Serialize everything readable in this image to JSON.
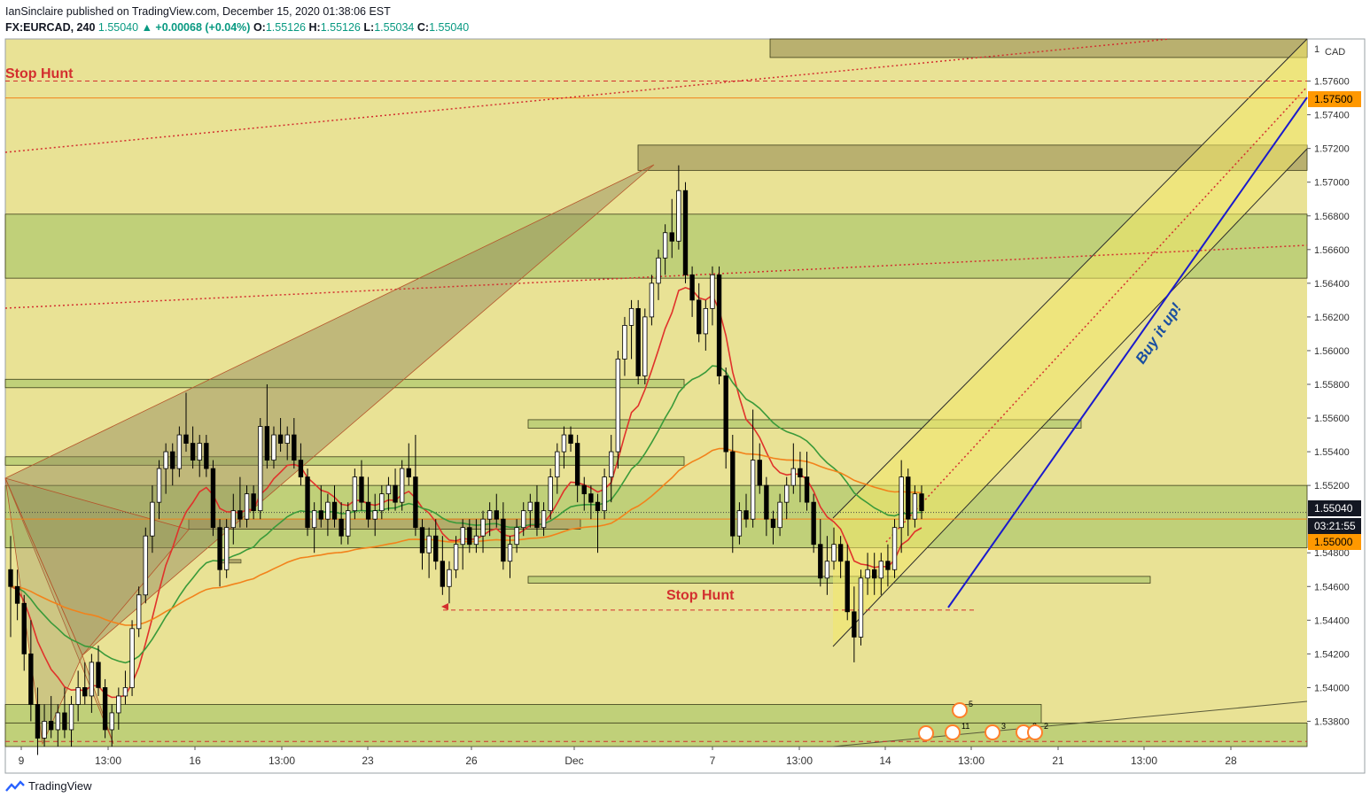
{
  "header": {
    "publisher_line": "IanSinclaire published on TradingView.com, December 15, 2020 01:38:06 EST",
    "symbol": "FX:EURCAD, 240",
    "last": "1.55040",
    "change": "▲ +0.00068 (+0.04%)",
    "o_label": "O:",
    "o_val": "1.55126",
    "h_label": "H:",
    "h_val": "1.55126",
    "l_label": "L:",
    "l_val": "1.55034",
    "c_label": "C:",
    "c_val": "1.55040"
  },
  "footer": {
    "brand": "TradingView"
  },
  "colors": {
    "background": "#e9e295",
    "zone_green": "#b9cc74",
    "zone_dark": "#b0a769",
    "bull_candle": "#ffffff",
    "bear_candle": "#000000",
    "ma_red": "#e0322b",
    "ma_green": "#3a9a3a",
    "ma_orange": "#f2821b",
    "stop_hunt": "#d32f2f",
    "trend_blue": "#1a1acc",
    "label_orange": "#ff9800"
  },
  "chart_data": {
    "type": "candlestick",
    "symbol": "FX:EURCAD",
    "timeframe": "240",
    "ylim": [
      1.5365,
      1.5785
    ],
    "y_ticks": [
      "1.57600",
      "1.57400",
      "1.57200",
      "1.57000",
      "1.56800",
      "1.56600",
      "1.56400",
      "1.56200",
      "1.56000",
      "1.55800",
      "1.55600",
      "1.55400",
      "1.55200",
      "1.54800",
      "1.54600",
      "1.54400",
      "1.54200",
      "1.54000",
      "1.53800"
    ],
    "y_unit": "CAD",
    "x_ticks": [
      "9",
      "13:00",
      "16",
      "13:00",
      "23",
      "26",
      "Dec",
      "7",
      "13:00",
      "14",
      "13:00",
      "21",
      "13:00",
      "28"
    ],
    "price_labels": [
      {
        "text": "1.57500",
        "style": "orange"
      },
      {
        "text": "1.55040",
        "style": "dark"
      },
      {
        "text": "03:21:55",
        "style": "dark"
      },
      {
        "text": "1.55000",
        "style": "orange"
      }
    ],
    "annotations": [
      {
        "text": "Stop Hunt",
        "color": "#d32f2f"
      },
      {
        "text": "Stop Hunt",
        "color": "#d32f2f"
      },
      {
        "text": "Buy it up!",
        "color": "#1a4fa0"
      }
    ],
    "event_badges": [
      "5",
      "11",
      "3",
      "2",
      "2"
    ],
    "candles": [
      [
        1.547,
        1.549,
        1.543,
        1.546
      ],
      [
        1.546,
        1.547,
        1.544,
        1.545
      ],
      [
        1.545,
        1.5455,
        1.541,
        1.542
      ],
      [
        1.542,
        1.544,
        1.538,
        1.539
      ],
      [
        1.539,
        1.54,
        1.536,
        1.537
      ],
      [
        1.537,
        1.539,
        1.5365,
        1.538
      ],
      [
        1.538,
        1.5395,
        1.537,
        1.5375
      ],
      [
        1.5375,
        1.539,
        1.5365,
        1.5385
      ],
      [
        1.5385,
        1.54,
        1.537,
        1.5375
      ],
      [
        1.5375,
        1.5395,
        1.5365,
        1.539
      ],
      [
        1.539,
        1.541,
        1.538,
        1.54
      ],
      [
        1.54,
        1.5415,
        1.539,
        1.5395
      ],
      [
        1.5395,
        1.542,
        1.5385,
        1.5415
      ],
      [
        1.5415,
        1.5425,
        1.5395,
        1.54
      ],
      [
        1.54,
        1.5405,
        1.537,
        1.5375
      ],
      [
        1.5375,
        1.539,
        1.5365,
        1.5385
      ],
      [
        1.5385,
        1.54,
        1.5375,
        1.5395
      ],
      [
        1.5395,
        1.541,
        1.539,
        1.54
      ],
      [
        1.54,
        1.544,
        1.5395,
        1.5435
      ],
      [
        1.5435,
        1.546,
        1.543,
        1.5455
      ],
      [
        1.5455,
        1.5495,
        1.545,
        1.549
      ],
      [
        1.549,
        1.552,
        1.548,
        1.551
      ],
      [
        1.551,
        1.5535,
        1.55,
        1.553
      ],
      [
        1.553,
        1.5545,
        1.5515,
        1.554
      ],
      [
        1.554,
        1.5545,
        1.552,
        1.553
      ],
      [
        1.553,
        1.5555,
        1.5525,
        1.555
      ],
      [
        1.555,
        1.5575,
        1.554,
        1.5545
      ],
      [
        1.5545,
        1.5555,
        1.553,
        1.5535
      ],
      [
        1.5535,
        1.555,
        1.5525,
        1.5545
      ],
      [
        1.5545,
        1.555,
        1.5525,
        1.553
      ],
      [
        1.553,
        1.5535,
        1.549,
        1.5495
      ],
      [
        1.5495,
        1.55,
        1.546,
        1.547
      ],
      [
        1.547,
        1.55,
        1.5465,
        1.5495
      ],
      [
        1.5495,
        1.5515,
        1.5485,
        1.5505
      ],
      [
        1.5505,
        1.5525,
        1.5495,
        1.55
      ],
      [
        1.55,
        1.552,
        1.5495,
        1.5515
      ],
      [
        1.5515,
        1.552,
        1.55,
        1.5505
      ],
      [
        1.5505,
        1.556,
        1.55,
        1.5555
      ],
      [
        1.5555,
        1.558,
        1.553,
        1.5535
      ],
      [
        1.5535,
        1.5555,
        1.553,
        1.555
      ],
      [
        1.555,
        1.556,
        1.554,
        1.5545
      ],
      [
        1.5545,
        1.5555,
        1.5535,
        1.555
      ],
      [
        1.555,
        1.556,
        1.553,
        1.5535
      ],
      [
        1.5535,
        1.5545,
        1.552,
        1.5525
      ],
      [
        1.5525,
        1.553,
        1.549,
        1.5495
      ],
      [
        1.5495,
        1.551,
        1.548,
        1.5505
      ],
      [
        1.5505,
        1.552,
        1.5495,
        1.55
      ],
      [
        1.55,
        1.5515,
        1.549,
        1.551
      ],
      [
        1.551,
        1.552,
        1.5495,
        1.55
      ],
      [
        1.55,
        1.551,
        1.5485,
        1.549
      ],
      [
        1.549,
        1.551,
        1.5485,
        1.5505
      ],
      [
        1.5505,
        1.553,
        1.55,
        1.5525
      ],
      [
        1.5525,
        1.5535,
        1.5505,
        1.551
      ],
      [
        1.551,
        1.5525,
        1.5495,
        1.55
      ],
      [
        1.55,
        1.5515,
        1.549,
        1.5505
      ],
      [
        1.5505,
        1.552,
        1.55,
        1.5515
      ],
      [
        1.5515,
        1.5525,
        1.5505,
        1.552
      ],
      [
        1.552,
        1.553,
        1.5505,
        1.551
      ],
      [
        1.551,
        1.5535,
        1.5505,
        1.553
      ],
      [
        1.553,
        1.5545,
        1.552,
        1.5525
      ],
      [
        1.5525,
        1.555,
        1.549,
        1.5495
      ],
      [
        1.5495,
        1.55,
        1.547,
        1.548
      ],
      [
        1.548,
        1.5495,
        1.5465,
        1.549
      ],
      [
        1.549,
        1.55,
        1.547,
        1.5475
      ],
      [
        1.5475,
        1.549,
        1.5455,
        1.546
      ],
      [
        1.546,
        1.5475,
        1.545,
        1.547
      ],
      [
        1.547,
        1.549,
        1.5465,
        1.5485
      ],
      [
        1.5485,
        1.55,
        1.547,
        1.5495
      ],
      [
        1.5495,
        1.55,
        1.548,
        1.5485
      ],
      [
        1.5485,
        1.55,
        1.548,
        1.549
      ],
      [
        1.549,
        1.5505,
        1.548,
        1.55
      ],
      [
        1.55,
        1.551,
        1.549,
        1.5505
      ],
      [
        1.5505,
        1.5515,
        1.5495,
        1.55
      ],
      [
        1.55,
        1.551,
        1.547,
        1.5475
      ],
      [
        1.5475,
        1.549,
        1.5465,
        1.5485
      ],
      [
        1.5485,
        1.55,
        1.548,
        1.5495
      ],
      [
        1.5495,
        1.551,
        1.549,
        1.5505
      ],
      [
        1.5505,
        1.5515,
        1.5495,
        1.551
      ],
      [
        1.551,
        1.552,
        1.549,
        1.5495
      ],
      [
        1.5495,
        1.551,
        1.549,
        1.5505
      ],
      [
        1.5505,
        1.553,
        1.55,
        1.5525
      ],
      [
        1.5525,
        1.5545,
        1.5515,
        1.554
      ],
      [
        1.554,
        1.5555,
        1.553,
        1.555
      ],
      [
        1.555,
        1.5555,
        1.554,
        1.5545
      ],
      [
        1.5545,
        1.555,
        1.551,
        1.552
      ],
      [
        1.552,
        1.5525,
        1.5505,
        1.5515
      ],
      [
        1.5515,
        1.552,
        1.55,
        1.551
      ],
      [
        1.551,
        1.5515,
        1.548,
        1.5505
      ],
      [
        1.5505,
        1.553,
        1.55,
        1.5525
      ],
      [
        1.5525,
        1.555,
        1.551,
        1.554
      ],
      [
        1.554,
        1.56,
        1.553,
        1.5595
      ],
      [
        1.5595,
        1.562,
        1.5585,
        1.5615
      ],
      [
        1.5615,
        1.563,
        1.5595,
        1.5625
      ],
      [
        1.5625,
        1.563,
        1.558,
        1.5585
      ],
      [
        1.5585,
        1.5625,
        1.558,
        1.562
      ],
      [
        1.562,
        1.5645,
        1.5615,
        1.564
      ],
      [
        1.564,
        1.566,
        1.563,
        1.5655
      ],
      [
        1.5655,
        1.5675,
        1.5645,
        1.567
      ],
      [
        1.567,
        1.569,
        1.5655,
        1.5665
      ],
      [
        1.5665,
        1.571,
        1.566,
        1.5695
      ],
      [
        1.5695,
        1.57,
        1.564,
        1.5645
      ],
      [
        1.5645,
        1.565,
        1.562,
        1.563
      ],
      [
        1.563,
        1.564,
        1.5605,
        1.561
      ],
      [
        1.561,
        1.563,
        1.56,
        1.5625
      ],
      [
        1.5625,
        1.565,
        1.5615,
        1.5645
      ],
      [
        1.5645,
        1.565,
        1.558,
        1.5585
      ],
      [
        1.5585,
        1.559,
        1.553,
        1.554
      ],
      [
        1.554,
        1.555,
        1.548,
        1.549
      ],
      [
        1.549,
        1.551,
        1.5485,
        1.5505
      ],
      [
        1.5505,
        1.5515,
        1.5495,
        1.55
      ],
      [
        1.55,
        1.5565,
        1.5495,
        1.5535
      ],
      [
        1.5535,
        1.5545,
        1.5515,
        1.552
      ],
      [
        1.552,
        1.5525,
        1.549,
        1.55
      ],
      [
        1.55,
        1.5505,
        1.5485,
        1.5495
      ],
      [
        1.5495,
        1.5515,
        1.549,
        1.551
      ],
      [
        1.551,
        1.5525,
        1.55,
        1.552
      ],
      [
        1.552,
        1.5545,
        1.5515,
        1.553
      ],
      [
        1.553,
        1.554,
        1.551,
        1.5525
      ],
      [
        1.5525,
        1.554,
        1.5505,
        1.551
      ],
      [
        1.551,
        1.5515,
        1.548,
        1.5485
      ],
      [
        1.5485,
        1.55,
        1.546,
        1.5465
      ],
      [
        1.5465,
        1.549,
        1.5455,
        1.5475
      ],
      [
        1.5475,
        1.5495,
        1.547,
        1.5485
      ],
      [
        1.5485,
        1.549,
        1.5465,
        1.5475
      ],
      [
        1.5475,
        1.5485,
        1.544,
        1.5445
      ],
      [
        1.5445,
        1.546,
        1.5415,
        1.543
      ],
      [
        1.543,
        1.547,
        1.5425,
        1.5465
      ],
      [
        1.5465,
        1.548,
        1.5455,
        1.547
      ],
      [
        1.547,
        1.548,
        1.5455,
        1.5465
      ],
      [
        1.5465,
        1.548,
        1.5455,
        1.5475
      ],
      [
        1.5475,
        1.5485,
        1.546,
        1.547
      ],
      [
        1.547,
        1.55,
        1.5465,
        1.5495
      ],
      [
        1.5495,
        1.5535,
        1.548,
        1.5525
      ],
      [
        1.5525,
        1.553,
        1.549,
        1.55
      ],
      [
        1.55,
        1.552,
        1.5495,
        1.5515
      ],
      [
        1.5515,
        1.552,
        1.55,
        1.5505
      ]
    ]
  }
}
